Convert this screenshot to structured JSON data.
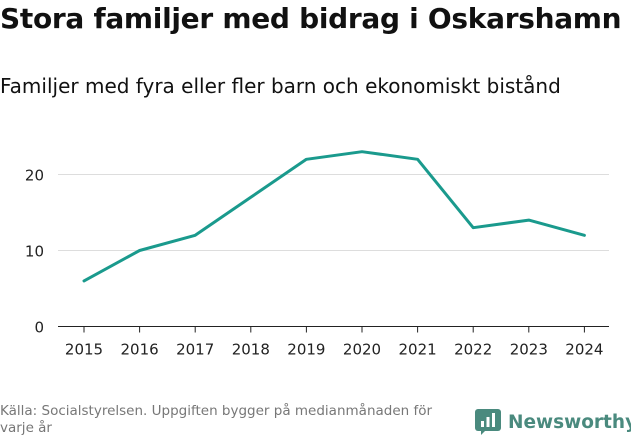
{
  "title": "Stora familjer med bidrag i Oskarshamn",
  "subtitle": "Familjer med fyra eller fler barn och ekonomiskt bistånd",
  "source": "Källa: Socialstyrelsen. Uppgiften bygger på medianmånaden för varje år",
  "brand": {
    "name": "Newsworthy",
    "icon": "newsworthy-logo-icon"
  },
  "colors": {
    "line": "#1a9a8d",
    "grid": "#dddddd",
    "axis": "#222222",
    "brand": "#4a8a7e"
  },
  "chart_data": {
    "type": "line",
    "title": "Stora familjer med bidrag i Oskarshamn",
    "subtitle": "Familjer med fyra eller fler barn och ekonomiskt bistånd",
    "xlabel": "",
    "ylabel": "",
    "x": [
      "2015",
      "2016",
      "2017",
      "2018",
      "2019",
      "2020",
      "2021",
      "2022",
      "2023",
      "2024"
    ],
    "series": [
      {
        "name": "Familjer med fyra eller fler barn och ekonomiskt bistånd",
        "values": [
          6,
          10,
          12,
          17,
          22,
          23,
          22,
          13,
          14,
          12
        ]
      }
    ],
    "ylim": [
      0,
      26
    ],
    "yticks": [
      0,
      10,
      20
    ],
    "ytick_labels": [
      "0",
      "10",
      "20"
    ],
    "grid": true,
    "legend": "none"
  }
}
